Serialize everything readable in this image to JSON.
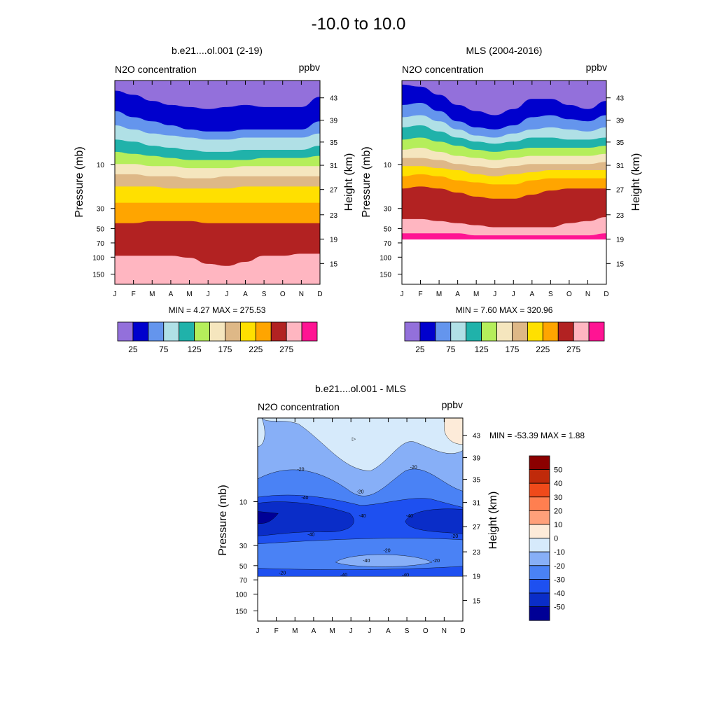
{
  "page": {
    "title": "-10.0 to  10.0"
  },
  "months": [
    "J",
    "F",
    "M",
    "A",
    "M",
    "J",
    "J",
    "A",
    "S",
    "O",
    "N",
    "D"
  ],
  "axes": {
    "left_label": "Pressure (mb)",
    "right_label": "Height (km)",
    "pressure_ticks": [
      "10",
      "30",
      "50",
      "70",
      "100",
      "150"
    ],
    "height_ticks": [
      "43",
      "39",
      "35",
      "31",
      "27",
      "23",
      "19",
      "15"
    ]
  },
  "chart_data": [
    {
      "type": "contour-filled",
      "title": "b.e21....ol.001 (2-19)",
      "left_string": "N2O concentration",
      "right_string": "ppbv",
      "stats": "MIN =   4.27  MAX = 275.53",
      "colorbar_labels": [
        "25",
        "75",
        "125",
        "175",
        "225",
        "275"
      ],
      "level_colors": [
        "#9370DB",
        "#0000CD",
        "#6495ED",
        "#B0E0E6",
        "#20B2AA",
        "#B5EE5B",
        "#F5E6BE",
        "#DEB887",
        "#FFE000",
        "#FFA500",
        "#B22222",
        "#FFB6C1",
        "#FF1493"
      ],
      "layer_boundaries_fraction_of_depth": [
        [
          0.05,
          0.07,
          0.1,
          0.12,
          0.13,
          0.14,
          0.13,
          0.12,
          0.13,
          0.13,
          0.13,
          0.08
        ],
        [
          0.15,
          0.18,
          0.2,
          0.22,
          0.24,
          0.25,
          0.25,
          0.24,
          0.24,
          0.24,
          0.24,
          0.2
        ],
        [
          0.22,
          0.24,
          0.26,
          0.27,
          0.28,
          0.29,
          0.29,
          0.28,
          0.28,
          0.28,
          0.28,
          0.26
        ],
        [
          0.29,
          0.3,
          0.32,
          0.33,
          0.34,
          0.35,
          0.35,
          0.34,
          0.34,
          0.34,
          0.34,
          0.32
        ],
        [
          0.35,
          0.36,
          0.37,
          0.38,
          0.39,
          0.39,
          0.39,
          0.39,
          0.38,
          0.38,
          0.38,
          0.37
        ],
        [
          0.41,
          0.41,
          0.42,
          0.42,
          0.43,
          0.43,
          0.43,
          0.42,
          0.42,
          0.42,
          0.42,
          0.42
        ],
        [
          0.46,
          0.46,
          0.47,
          0.47,
          0.48,
          0.48,
          0.47,
          0.47,
          0.47,
          0.47,
          0.47,
          0.47
        ],
        [
          0.52,
          0.52,
          0.52,
          0.53,
          0.53,
          0.53,
          0.53,
          0.52,
          0.52,
          0.52,
          0.52,
          0.52
        ],
        [
          0.6,
          0.6,
          0.6,
          0.6,
          0.6,
          0.6,
          0.6,
          0.6,
          0.6,
          0.6,
          0.6,
          0.6
        ],
        [
          0.7,
          0.7,
          0.69,
          0.69,
          0.69,
          0.7,
          0.7,
          0.7,
          0.7,
          0.7,
          0.7,
          0.7
        ],
        [
          0.86,
          0.86,
          0.86,
          0.86,
          0.87,
          0.9,
          0.91,
          0.89,
          0.86,
          0.86,
          0.85,
          0.85
        ]
      ]
    },
    {
      "type": "contour-filled",
      "title": "MLS (2004-2016)",
      "left_string": "N2O concentration",
      "right_string": "ppbv",
      "stats": "MIN =   7.60  MAX = 320.96",
      "colorbar_labels": [
        "25",
        "75",
        "125",
        "175",
        "225",
        "275"
      ],
      "level_colors": [
        "#9370DB",
        "#0000CD",
        "#6495ED",
        "#B0E0E6",
        "#20B2AA",
        "#B5EE5B",
        "#F5E6BE",
        "#DEB887",
        "#FFE000",
        "#FFA500",
        "#B22222",
        "#FFB6C1",
        "#FF1493"
      ],
      "data_bottom_fraction_of_depth": 0.78,
      "layer_boundaries_fraction_of_depth": [
        [
          0.02,
          0.03,
          0.07,
          0.12,
          0.15,
          0.17,
          0.14,
          0.09,
          0.09,
          0.12,
          0.14,
          0.1
        ],
        [
          0.12,
          0.11,
          0.15,
          0.2,
          0.23,
          0.24,
          0.22,
          0.18,
          0.17,
          0.19,
          0.2,
          0.17
        ],
        [
          0.18,
          0.17,
          0.2,
          0.24,
          0.27,
          0.28,
          0.26,
          0.24,
          0.23,
          0.24,
          0.25,
          0.23
        ],
        [
          0.23,
          0.22,
          0.25,
          0.28,
          0.3,
          0.31,
          0.3,
          0.28,
          0.28,
          0.29,
          0.29,
          0.28
        ],
        [
          0.29,
          0.28,
          0.3,
          0.32,
          0.34,
          0.35,
          0.34,
          0.33,
          0.33,
          0.33,
          0.33,
          0.32
        ],
        [
          0.34,
          0.33,
          0.35,
          0.37,
          0.38,
          0.39,
          0.38,
          0.37,
          0.37,
          0.37,
          0.37,
          0.36
        ],
        [
          0.38,
          0.38,
          0.39,
          0.41,
          0.42,
          0.43,
          0.42,
          0.41,
          0.41,
          0.41,
          0.41,
          0.4
        ],
        [
          0.42,
          0.42,
          0.43,
          0.44,
          0.46,
          0.47,
          0.46,
          0.45,
          0.44,
          0.44,
          0.44,
          0.44
        ],
        [
          0.47,
          0.46,
          0.47,
          0.49,
          0.5,
          0.51,
          0.51,
          0.49,
          0.48,
          0.48,
          0.48,
          0.48
        ],
        [
          0.53,
          0.52,
          0.53,
          0.55,
          0.57,
          0.58,
          0.58,
          0.56,
          0.54,
          0.53,
          0.53,
          0.53
        ],
        [
          0.68,
          0.68,
          0.69,
          0.7,
          0.71,
          0.72,
          0.72,
          0.72,
          0.72,
          0.7,
          0.69,
          0.67
        ],
        [
          0.75,
          0.75,
          0.75,
          0.75,
          0.76,
          0.76,
          0.76,
          0.76,
          0.76,
          0.76,
          0.76,
          0.75
        ]
      ]
    },
    {
      "type": "contour-filled",
      "title": "b.e21....ol.001 - MLS",
      "left_string": "N2O concentration",
      "right_string": "ppbv",
      "stats": "MIN = -53.39  MAX =   1.88",
      "colorbar_labels": [
        "50",
        "40",
        "30",
        "20",
        "10",
        "0",
        "-10",
        "-20",
        "-30",
        "-40",
        "-50"
      ],
      "level_colors": [
        "#8B0000",
        "#C02A0A",
        "#F04A1A",
        "#FF7F50",
        "#FFA07A",
        "#FDEBD9",
        "#D6EAFB",
        "#87AFF7",
        "#4A82F5",
        "#1E50F0",
        "#0A2DC8",
        "#000096"
      ],
      "diff_contour_labels": [
        "-20",
        "-20",
        "-40",
        "-20",
        "-20",
        "-40",
        "-40",
        "-40",
        "-40",
        "-20",
        "-20",
        "-20",
        "-40",
        "-40"
      ],
      "data_bottom_fraction_of_depth": 0.78
    }
  ]
}
